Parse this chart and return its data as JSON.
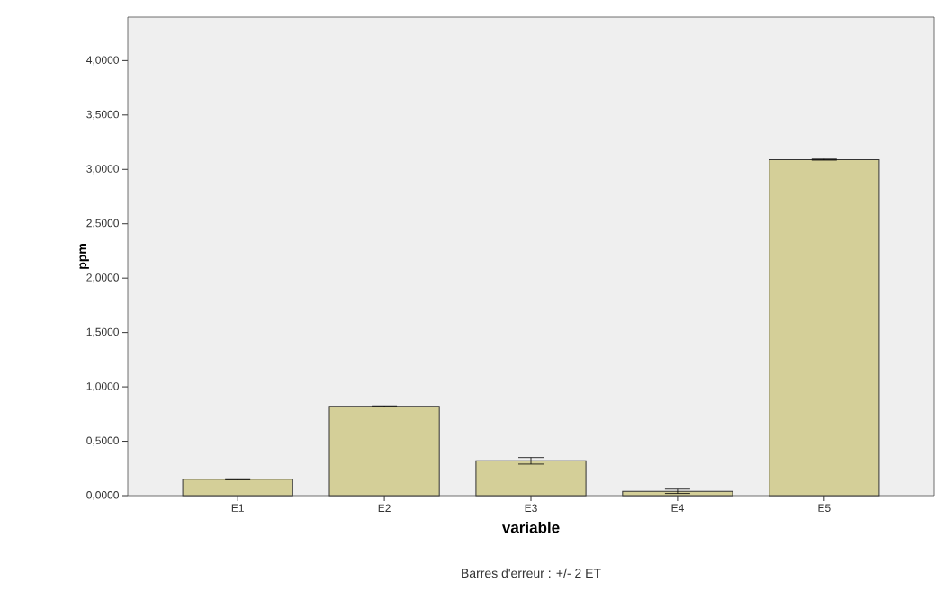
{
  "chart_data": {
    "type": "bar",
    "xlabel": "variable",
    "ylabel": "ppm",
    "annotations": [
      "Barres d'erreur : +/- 2 ET"
    ],
    "categories": [
      "E1",
      "E2",
      "E3",
      "E4",
      "E5"
    ],
    "values": [
      0.15,
      0.82,
      0.32,
      0.04,
      3.09
    ],
    "errors": [
      0.005,
      0.005,
      0.03,
      0.02,
      0.005
    ],
    "color": "#d4cf98",
    "ylim": [
      0,
      4.4
    ],
    "yticks": [
      {
        "value": 0,
        "label": "0,0000"
      },
      {
        "value": 0.5,
        "label": "0,5000"
      },
      {
        "value": 1,
        "label": "1,0000"
      },
      {
        "value": 1.5,
        "label": "1,5000"
      },
      {
        "value": 2,
        "label": "2,0000"
      },
      {
        "value": 2.5,
        "label": "2,5000"
      },
      {
        "value": 3,
        "label": "3,0000"
      },
      {
        "value": 3.5,
        "label": "3,5000"
      },
      {
        "value": 4,
        "label": "4,0000"
      }
    ],
    "grid": false
  }
}
